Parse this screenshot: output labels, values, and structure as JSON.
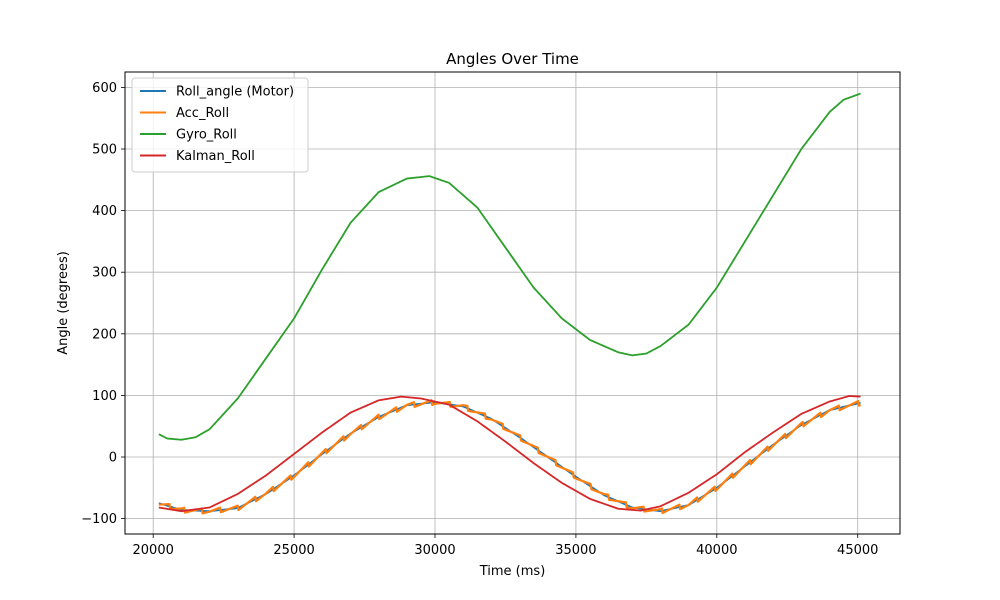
{
  "chart_data": {
    "type": "line",
    "title": "Angles Over Time",
    "xlabel": "Time (ms)",
    "ylabel": "Angle (degrees)",
    "xlim": [
      19000,
      46500
    ],
    "ylim": [
      -125,
      625
    ],
    "x_ticks": [
      20000,
      25000,
      30000,
      35000,
      40000,
      45000
    ],
    "x_tick_labels": [
      "20000",
      "25000",
      "30000",
      "35000",
      "40000",
      "45000"
    ],
    "y_ticks": [
      -100,
      0,
      100,
      200,
      300,
      400,
      500,
      600
    ],
    "y_tick_labels": [
      "−100",
      "0",
      "100",
      "200",
      "300",
      "400",
      "500",
      "600"
    ],
    "grid": true,
    "legend_position": "top-left",
    "series": [
      {
        "name": "Roll_angle (Motor)",
        "color": "#1f77b4",
        "x": [
          20200,
          21000,
          22000,
          23000,
          24000,
          25000,
          26000,
          27000,
          28000,
          29000,
          30000,
          31000,
          32000,
          33000,
          34000,
          35000,
          36000,
          37000,
          38000,
          39000,
          40000,
          41000,
          42000,
          43000,
          44000,
          45100
        ],
        "y": [
          -75,
          -86,
          -88,
          -83,
          -60,
          -30,
          5,
          38,
          65,
          84,
          89,
          82,
          62,
          32,
          0,
          -32,
          -62,
          -82,
          -88,
          -78,
          -50,
          -15,
          20,
          52,
          76,
          88
        ]
      },
      {
        "name": "Acc_Roll",
        "color": "#ff7f0e",
        "x": [
          20200,
          21000,
          22000,
          23000,
          24000,
          25000,
          26000,
          27000,
          28000,
          29000,
          30000,
          31000,
          32000,
          33000,
          34000,
          35000,
          36000,
          37000,
          38000,
          39000,
          40000,
          41000,
          42000,
          43000,
          44000,
          45100
        ],
        "y": [
          -75,
          -86,
          -88,
          -83,
          -60,
          -30,
          5,
          38,
          65,
          84,
          89,
          82,
          62,
          32,
          0,
          -32,
          -62,
          -82,
          -88,
          -78,
          -50,
          -15,
          20,
          52,
          76,
          88
        ]
      },
      {
        "name": "Gyro_Roll",
        "color": "#2ca02c",
        "x": [
          20200,
          20500,
          21000,
          21500,
          22000,
          23000,
          24000,
          25000,
          26000,
          27000,
          28000,
          29000,
          29800,
          30500,
          31500,
          32500,
          33500,
          34500,
          35500,
          36500,
          37000,
          37500,
          38000,
          39000,
          40000,
          41000,
          42000,
          43000,
          44000,
          44500,
          45100
        ],
        "y": [
          37,
          30,
          28,
          32,
          45,
          95,
          160,
          225,
          305,
          380,
          430,
          452,
          456,
          445,
          405,
          340,
          275,
          225,
          190,
          170,
          165,
          168,
          180,
          215,
          275,
          350,
          425,
          500,
          560,
          580,
          590
        ]
      },
      {
        "name": "Kalman_Roll",
        "color": "#d62728",
        "x": [
          20200,
          21000,
          22000,
          23000,
          24000,
          25000,
          26000,
          27000,
          28000,
          28800,
          29500,
          30500,
          31500,
          32500,
          33500,
          34500,
          35500,
          36500,
          37300,
          38000,
          39000,
          40000,
          41000,
          42000,
          43000,
          44000,
          44700,
          45100
        ],
        "y": [
          -82,
          -88,
          -82,
          -60,
          -30,
          5,
          40,
          72,
          92,
          98,
          95,
          85,
          58,
          25,
          -10,
          -42,
          -68,
          -84,
          -87,
          -80,
          -58,
          -28,
          8,
          40,
          70,
          90,
          99,
          98
        ]
      }
    ]
  }
}
